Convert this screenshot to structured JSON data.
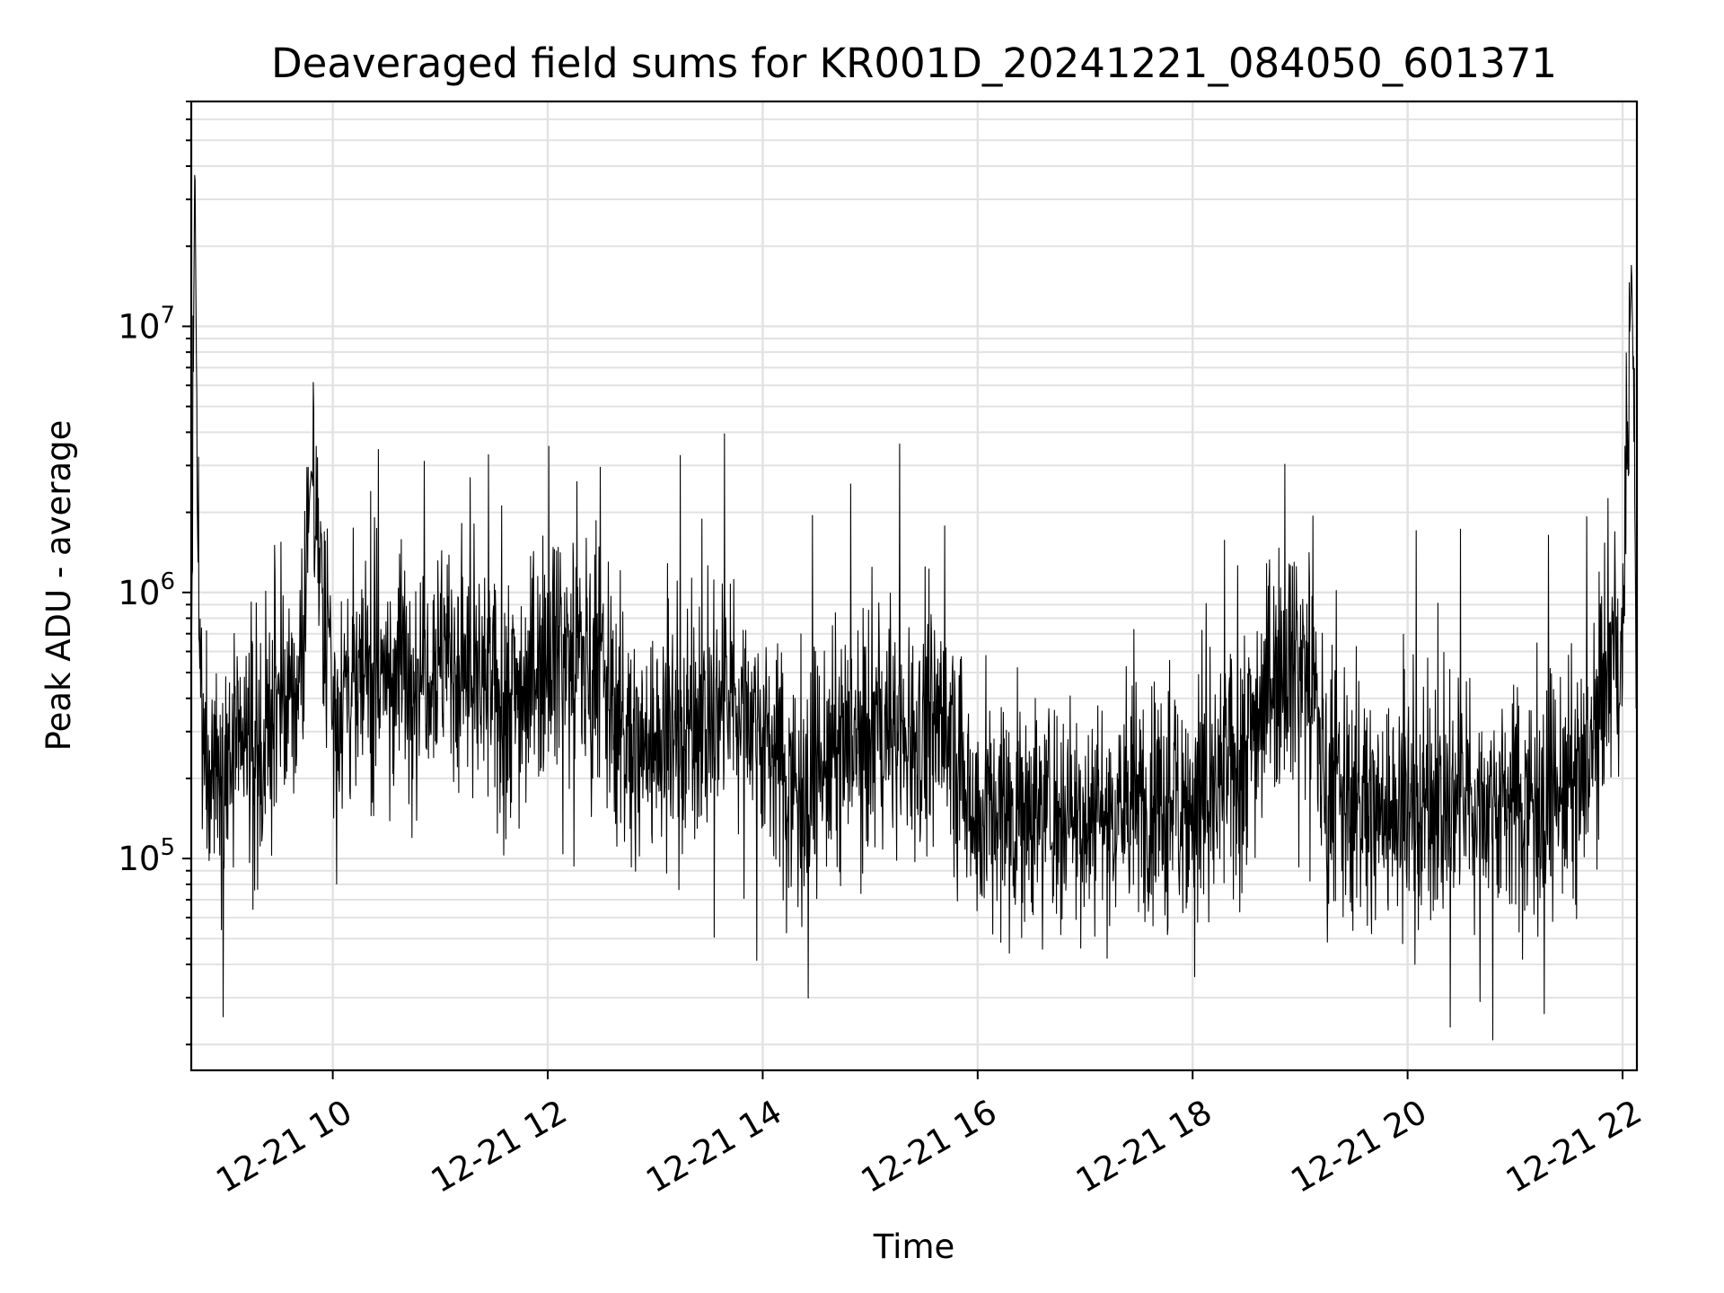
{
  "chart_data": {
    "type": "line",
    "title": "Deaveraged field sums for KR001D_20241221_084050_601371",
    "xlabel": "Time",
    "ylabel": "Peak ADU - average",
    "x_scale": "time",
    "y_scale": "log",
    "xlim": [
      "2024-12-21 08:41",
      "2024-12-21 22:08"
    ],
    "ylim": [
      16000,
      70000000
    ],
    "x_ticks": [
      "12-21 10",
      "12-21 12",
      "12-21 14",
      "12-21 16",
      "12-21 18",
      "12-21 20",
      "12-21 22"
    ],
    "y_ticks": [
      {
        "base": "10",
        "exp": "5"
      },
      {
        "base": "10",
        "exp": "6"
      },
      {
        "base": "10",
        "exp": "7"
      }
    ],
    "grid": "major and minor",
    "legend": "none",
    "series": [
      {
        "color": "#000000",
        "x": [
          "2024-12-21 08:41",
          "2024-12-21 08:43",
          "2024-12-21 08:45",
          "2024-12-21 08:47",
          "2024-12-21 09:00",
          "2024-12-21 09:15",
          "2024-12-21 09:30",
          "2024-12-21 09:40",
          "2024-12-21 09:48",
          "2024-12-21 10:00",
          "2024-12-21 10:30",
          "2024-12-21 11:00",
          "2024-12-21 11:30",
          "2024-12-21 11:50",
          "2024-12-21 12:00",
          "2024-12-21 12:30",
          "2024-12-21 12:45",
          "2024-12-21 13:00",
          "2024-12-21 13:30",
          "2024-12-21 13:50",
          "2024-12-21 14:00",
          "2024-12-21 14:20",
          "2024-12-21 14:45",
          "2024-12-21 15:00",
          "2024-12-21 15:20",
          "2024-12-21 15:40",
          "2024-12-21 16:00",
          "2024-12-21 16:30",
          "2024-12-21 17:00",
          "2024-12-21 17:30",
          "2024-12-21 17:50",
          "2024-12-21 18:10",
          "2024-12-21 18:30",
          "2024-12-21 18:50",
          "2024-12-21 19:05",
          "2024-12-21 19:15",
          "2024-12-21 19:40",
          "2024-12-21 20:00",
          "2024-12-21 20:30",
          "2024-12-21 21:00",
          "2024-12-21 21:20",
          "2024-12-21 21:40",
          "2024-12-21 21:50",
          "2024-12-21 22:00",
          "2024-12-21 22:05",
          "2024-12-21 22:08"
        ],
        "y": [
          400000,
          47000000,
          700000,
          250000,
          230000,
          260000,
          320000,
          420000,
          2900000,
          420000,
          500000,
          600000,
          400000,
          450000,
          700000,
          500000,
          250000,
          280000,
          340000,
          400000,
          300000,
          180000,
          260000,
          280000,
          300000,
          330000,
          150000,
          160000,
          150000,
          160000,
          170000,
          160000,
          280000,
          600000,
          550000,
          180000,
          150000,
          160000,
          160000,
          170000,
          170000,
          200000,
          500000,
          550000,
          18000000,
          650000
        ]
      }
    ]
  }
}
